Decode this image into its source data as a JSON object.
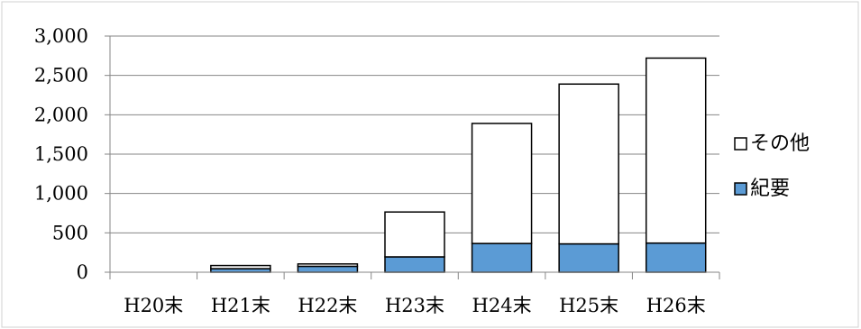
{
  "chart_data": {
    "type": "bar",
    "stacked": true,
    "categories": [
      "H20末",
      "H21末",
      "H22末",
      "H23末",
      "H24末",
      "H25末",
      "H26末"
    ],
    "series": [
      {
        "name": "紀要",
        "values": [
          0,
          45,
          75,
          195,
          365,
          360,
          370
        ],
        "color": "#5B9BD5"
      },
      {
        "name": "その他",
        "values": [
          0,
          40,
          30,
          570,
          1525,
          2030,
          2350
        ],
        "color": "#FFFFFF"
      }
    ],
    "ylim": [
      0,
      3000
    ],
    "yticks": [
      0,
      500,
      1000,
      1500,
      2000,
      2500,
      3000
    ],
    "ytick_labels": [
      "0",
      "500",
      "1,000",
      "1,500",
      "2,000",
      "2,500",
      "3,000"
    ],
    "grid": true,
    "legend": {
      "position": "right",
      "order": [
        "その他",
        "紀要"
      ]
    },
    "title": "",
    "xlabel": "",
    "ylabel": ""
  }
}
